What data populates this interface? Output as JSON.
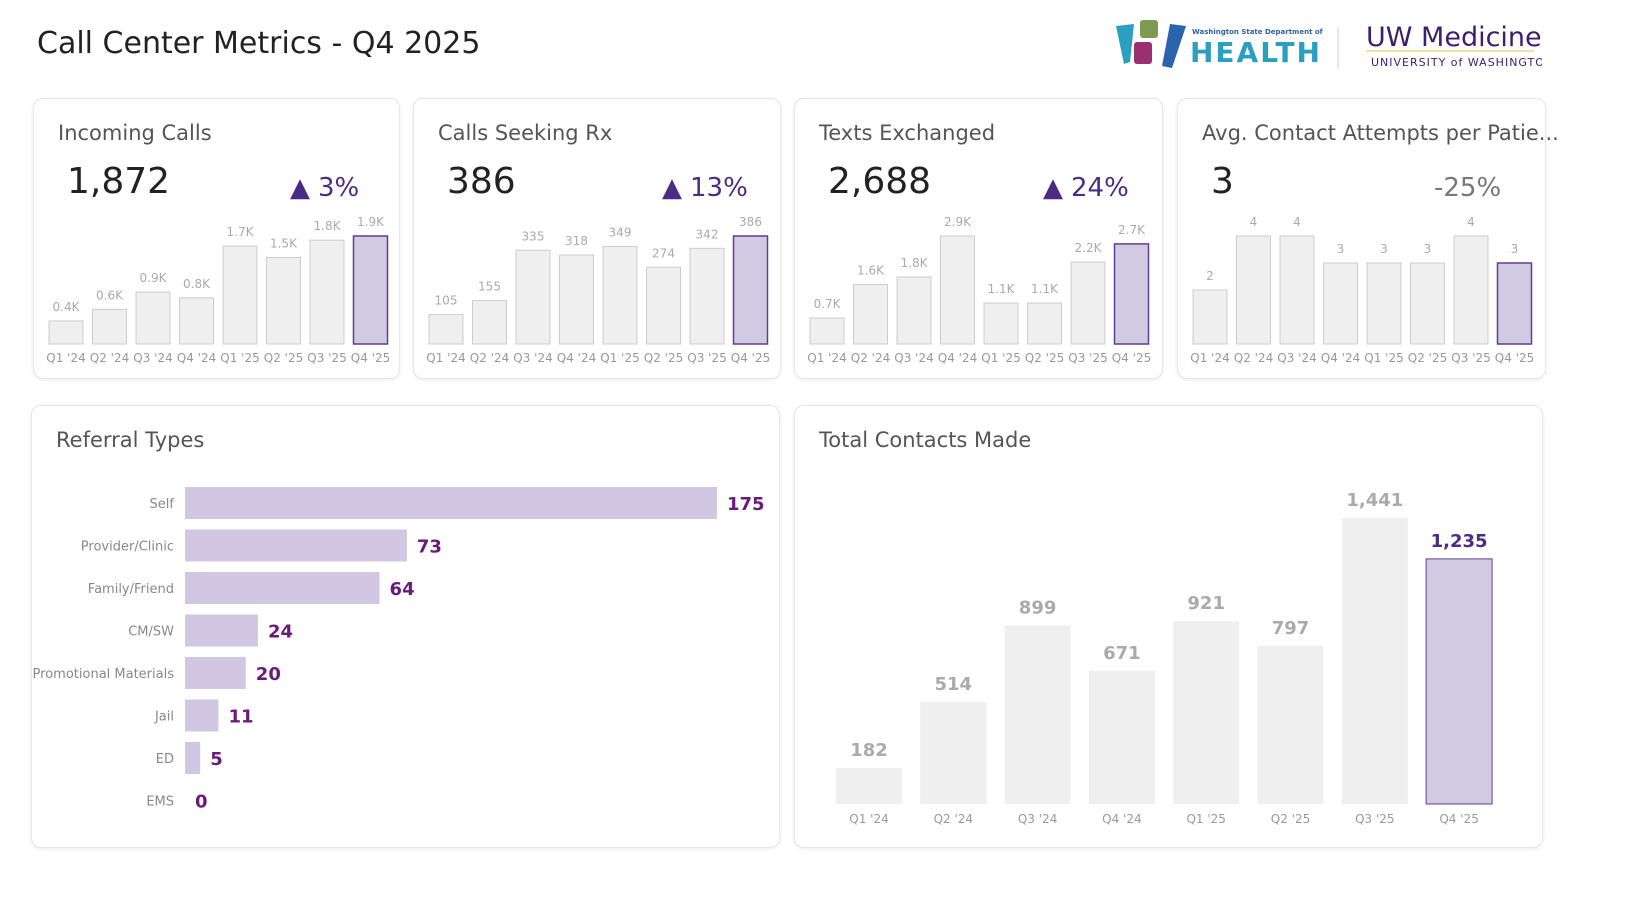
{
  "header": {
    "title": "Call Center Metrics - Q4 2025",
    "logos": {
      "doh_small": "Washington State Department of",
      "doh_big": "HEALTH",
      "uw_big": "UW Medicine",
      "uw_small": "UNIVERSITY of WASHINGTON"
    }
  },
  "colors": {
    "bar": "#efefef",
    "bar_stroke": "#cccccc",
    "highlight": "#d2c9e2",
    "highlight_stroke": "#5d3f94",
    "accent": "#4b2c84",
    "referral_bar": "#d1c7e3",
    "referral_label": "#6a1b7a"
  },
  "kpis": [
    {
      "title": "Incoming Calls",
      "value": "1,872",
      "delta": "3%",
      "direction": "up",
      "icon": "arrow-up-icon"
    },
    {
      "title": "Calls Seeking Rx",
      "value": "386",
      "delta": "13%",
      "direction": "up",
      "icon": "arrow-up-icon"
    },
    {
      "title": "Texts Exchanged",
      "value": "2,688",
      "delta": "24%",
      "direction": "up",
      "icon": "arrow-up-icon"
    },
    {
      "title": "Avg. Contact Attempts per Patie...",
      "value": "3",
      "delta": "-25%",
      "direction": "down"
    }
  ],
  "panels": {
    "referral_title": "Referral Types",
    "contacts_title": "Total Contacts Made"
  },
  "chart_data": [
    {
      "type": "bar",
      "categories": [
        "Q1 '24",
        "Q2 '24",
        "Q3 '24",
        "Q4 '24",
        "Q1 '25",
        "Q2 '25",
        "Q3 '25",
        "Q4 '25"
      ],
      "values": [
        400,
        600,
        900,
        800,
        1700,
        1500,
        1800,
        1872
      ],
      "labels": [
        "0.4K",
        "0.6K",
        "0.9K",
        "0.8K",
        "1.7K",
        "1.5K",
        "1.8K",
        "1.9K"
      ],
      "highlight": "Q4 '25"
    },
    {
      "type": "bar",
      "categories": [
        "Q1 '24",
        "Q2 '24",
        "Q3 '24",
        "Q4 '24",
        "Q1 '25",
        "Q2 '25",
        "Q3 '25",
        "Q4 '25"
      ],
      "values": [
        105,
        155,
        335,
        318,
        349,
        274,
        342,
        386
      ],
      "labels": [
        "105",
        "155",
        "335",
        "318",
        "349",
        "274",
        "342",
        "386"
      ],
      "highlight": "Q4 '25"
    },
    {
      "type": "bar",
      "categories": [
        "Q1 '24",
        "Q2 '24",
        "Q3 '24",
        "Q4 '24",
        "Q1 '25",
        "Q2 '25",
        "Q3 '25",
        "Q4 '25"
      ],
      "values": [
        700,
        1600,
        1800,
        2900,
        1100,
        1100,
        2200,
        2688
      ],
      "labels": [
        "0.7K",
        "1.6K",
        "1.8K",
        "2.9K",
        "1.1K",
        "1.1K",
        "2.2K",
        "2.7K"
      ],
      "highlight": "Q4 '25"
    },
    {
      "type": "bar",
      "categories": [
        "Q1 '24",
        "Q2 '24",
        "Q3 '24",
        "Q4 '24",
        "Q1 '25",
        "Q2 '25",
        "Q3 '25",
        "Q4 '25"
      ],
      "values": [
        2,
        4,
        4,
        3,
        3,
        3,
        4,
        3
      ],
      "labels": [
        "2",
        "4",
        "4",
        "3",
        "3",
        "3",
        "4",
        "3"
      ],
      "highlight": "Q4 '25"
    },
    {
      "type": "bar",
      "orientation": "horizontal",
      "title": "Referral Types",
      "categories": [
        "Self",
        "Provider/Clinic",
        "Family/Friend",
        "CM/SW",
        "Promotional Materials",
        "Jail",
        "ED",
        "EMS"
      ],
      "values": [
        175,
        73,
        64,
        24,
        20,
        11,
        5,
        0
      ]
    },
    {
      "type": "bar",
      "title": "Total Contacts Made",
      "categories": [
        "Q1 '24",
        "Q2 '24",
        "Q3 '24",
        "Q4 '24",
        "Q1 '25",
        "Q2 '25",
        "Q3 '25",
        "Q4 '25"
      ],
      "values": [
        182,
        514,
        899,
        671,
        921,
        797,
        1441,
        1235
      ],
      "labels": [
        "182",
        "514",
        "899",
        "671",
        "921",
        "797",
        "1,441",
        "1,235"
      ],
      "highlight": "Q4 '25"
    }
  ]
}
